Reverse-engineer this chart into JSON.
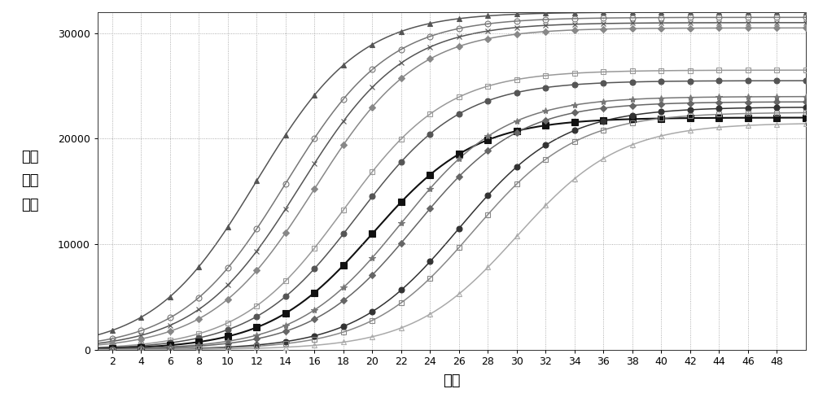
{
  "title": "",
  "xlabel": "循环",
  "ylabel": "相对\n荧光\n强度",
  "xlim": [
    1,
    50
  ],
  "ylim": [
    0,
    32000
  ],
  "yticks": [
    0,
    10000,
    20000,
    30000
  ],
  "xticks": [
    2,
    4,
    6,
    8,
    10,
    12,
    14,
    16,
    18,
    20,
    22,
    24,
    26,
    28,
    30,
    32,
    34,
    36,
    38,
    40,
    42,
    44,
    46,
    48
  ],
  "background_color": "#ffffff",
  "grid_color": "#999999",
  "steepness": 0.28,
  "curves": [
    {
      "ct": 12,
      "plateau": 32000,
      "color": "#555555",
      "marker": "^",
      "fillstyle": "full",
      "markersize": 5,
      "linewidth": 1.1
    },
    {
      "ct": 14,
      "plateau": 31500,
      "color": "#777777",
      "marker": "o",
      "fillstyle": "none",
      "markersize": 5,
      "linewidth": 1.1
    },
    {
      "ct": 15,
      "plateau": 31000,
      "color": "#555555",
      "marker": "x",
      "fillstyle": "full",
      "markersize": 5,
      "linewidth": 1.1
    },
    {
      "ct": 16,
      "plateau": 30500,
      "color": "#888888",
      "marker": "D",
      "fillstyle": "full",
      "markersize": 4,
      "linewidth": 1.1
    },
    {
      "ct": 18,
      "plateau": 26500,
      "color": "#999999",
      "marker": "s",
      "fillstyle": "none",
      "markersize": 5,
      "linewidth": 1.1
    },
    {
      "ct": 19,
      "plateau": 25500,
      "color": "#555555",
      "marker": "o",
      "fillstyle": "full",
      "markersize": 5,
      "linewidth": 1.1
    },
    {
      "ct": 20,
      "plateau": 22000,
      "color": "#111111",
      "marker": "s",
      "fillstyle": "full",
      "markersize": 6,
      "linewidth": 1.5
    },
    {
      "ct": 22,
      "plateau": 24000,
      "color": "#777777",
      "marker": "*",
      "fillstyle": "full",
      "markersize": 6,
      "linewidth": 1.1
    },
    {
      "ct": 23,
      "plateau": 23500,
      "color": "#666666",
      "marker": "D",
      "fillstyle": "full",
      "markersize": 4,
      "linewidth": 1.1
    },
    {
      "ct": 26,
      "plateau": 23000,
      "color": "#333333",
      "marker": "o",
      "fillstyle": "full",
      "markersize": 5,
      "linewidth": 1.1
    },
    {
      "ct": 27,
      "plateau": 22500,
      "color": "#888888",
      "marker": "s",
      "fillstyle": "none",
      "markersize": 5,
      "linewidth": 1.1
    },
    {
      "ct": 30,
      "plateau": 21500,
      "color": "#aaaaaa",
      "marker": "^",
      "fillstyle": "none",
      "markersize": 5,
      "linewidth": 1.1
    }
  ]
}
